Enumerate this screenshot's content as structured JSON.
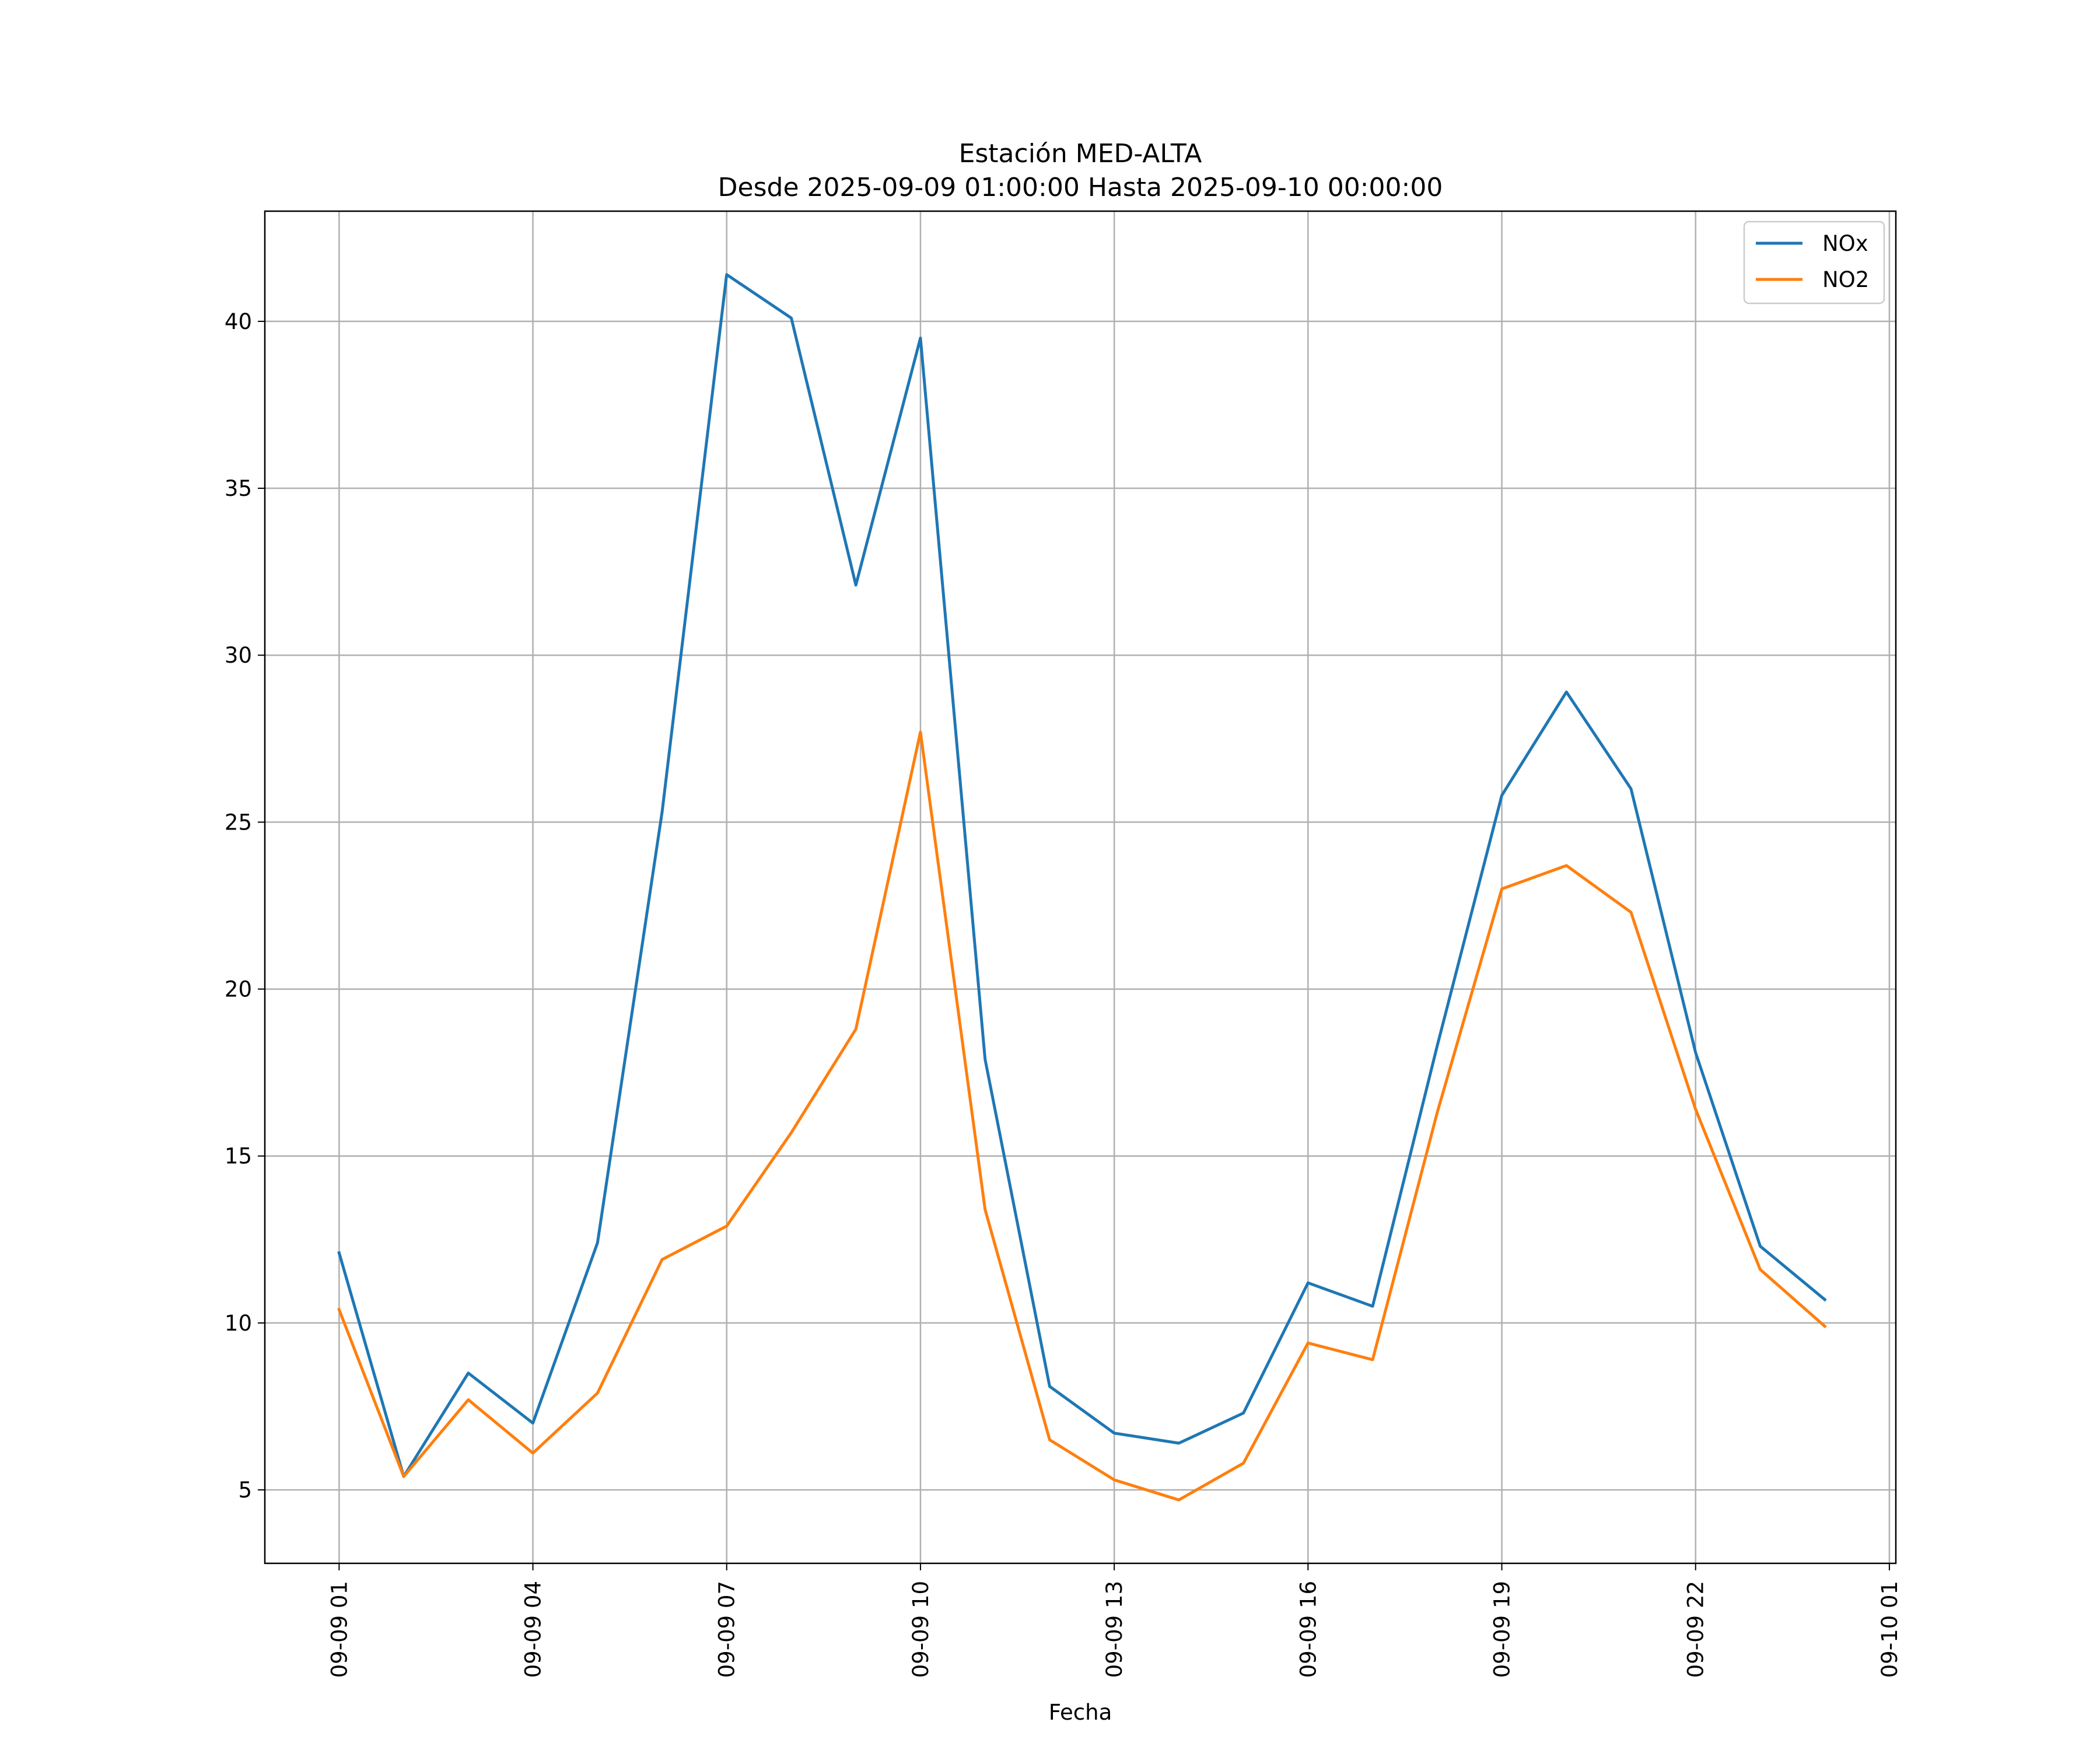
{
  "chart_data": {
    "type": "line",
    "title": "Estación MED-ALTA",
    "subtitle": "Desde 2025-09-09 01:00:00 Hasta 2025-09-10 00:00:00",
    "xlabel": "Fecha",
    "ylabel": "",
    "x_hours": [
      1,
      2,
      3,
      4,
      5,
      6,
      7,
      8,
      9,
      10,
      11,
      12,
      13,
      14,
      15,
      16,
      17,
      18,
      19,
      20,
      21,
      22,
      23,
      24
    ],
    "xlim": [
      -0.15,
      25.1
    ],
    "ylim": [
      2.8,
      43.3
    ],
    "x_ticks": [
      {
        "value": 1,
        "label": "09-09 01"
      },
      {
        "value": 4,
        "label": "09-09 04"
      },
      {
        "value": 7,
        "label": "09-09 07"
      },
      {
        "value": 10,
        "label": "09-09 10"
      },
      {
        "value": 13,
        "label": "09-09 13"
      },
      {
        "value": 16,
        "label": "09-09 16"
      },
      {
        "value": 19,
        "label": "09-09 19"
      },
      {
        "value": 22,
        "label": "09-09 22"
      },
      {
        "value": 25,
        "label": "09-10 01"
      }
    ],
    "y_ticks": [
      {
        "value": 5,
        "label": "5"
      },
      {
        "value": 10,
        "label": "10"
      },
      {
        "value": 15,
        "label": "15"
      },
      {
        "value": 20,
        "label": "20"
      },
      {
        "value": 25,
        "label": "25"
      },
      {
        "value": 30,
        "label": "30"
      },
      {
        "value": 35,
        "label": "35"
      },
      {
        "value": 40,
        "label": "40"
      }
    ],
    "grid": true,
    "legend_position": "top-right",
    "series": [
      {
        "name": "NOx",
        "color": "#1f77b4",
        "values": [
          12.1,
          5.4,
          8.5,
          7.0,
          12.4,
          25.3,
          41.4,
          40.1,
          32.1,
          39.5,
          17.9,
          8.1,
          6.7,
          6.4,
          7.3,
          11.2,
          10.5,
          18.3,
          25.8,
          28.9,
          26.0,
          18.1,
          12.3,
          10.7
        ]
      },
      {
        "name": "NO2",
        "color": "#ff7f0e",
        "values": [
          10.4,
          5.4,
          7.7,
          6.1,
          7.9,
          11.9,
          12.9,
          15.7,
          18.8,
          27.7,
          13.4,
          6.5,
          5.3,
          4.7,
          5.8,
          9.4,
          8.9,
          16.3,
          23.0,
          23.7,
          22.3,
          16.4,
          11.6,
          9.9
        ]
      }
    ]
  }
}
